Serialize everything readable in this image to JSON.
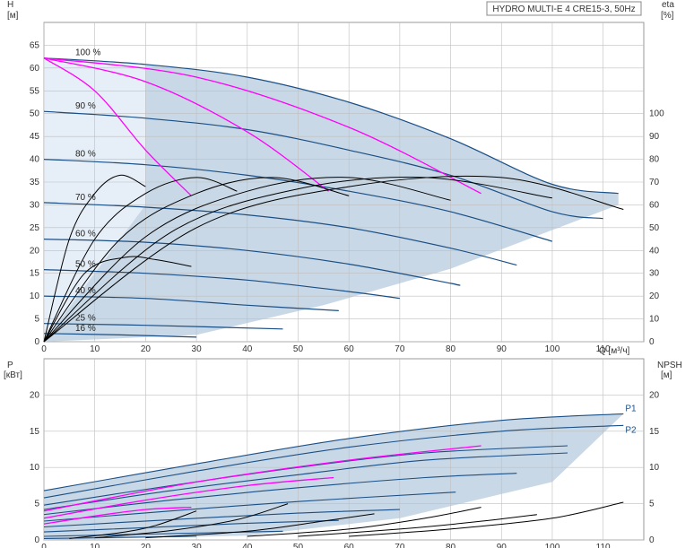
{
  "title": "HYDRO MULTI-E 4 CRE15-3, 50Hz",
  "colors": {
    "envelope": "#c9d8e6",
    "envelope_light": "#e6eef7",
    "curve": "#1a4f86",
    "magenta": "#ff00ff",
    "black": "#000000",
    "grid": "#bfbfbf"
  },
  "chart_data": [
    {
      "type": "line",
      "panel": "head",
      "title": "HYDRO MULTI-E 4 CRE15-3, 50Hz",
      "xlabel": "Q [м³/ч]",
      "ylabel_left": "H\n[м]",
      "ylabel_right": "eta\n[%]",
      "xlim": [
        0,
        118
      ],
      "ylim": [
        0,
        70
      ],
      "ylim_right": [
        0,
        140
      ],
      "x_ticks": [
        0,
        10,
        20,
        30,
        40,
        50,
        60,
        70,
        80,
        90,
        100,
        110
      ],
      "y_ticks": [
        0,
        5,
        10,
        15,
        20,
        25,
        30,
        35,
        40,
        45,
        50,
        55,
        60,
        65
      ],
      "y_ticks_right": [
        0,
        10,
        20,
        30,
        40,
        50,
        60,
        70,
        80,
        90,
        100
      ],
      "speed_curves": [
        {
          "name": "100 %",
          "x": [
            0,
            20,
            40,
            60,
            80,
            100,
            113
          ],
          "y": [
            62.2,
            60.8,
            58.0,
            52.5,
            44.5,
            34.5,
            32.5
          ]
        },
        {
          "name": "90 %",
          "x": [
            0,
            20,
            40,
            60,
            80,
            100,
            110
          ],
          "y": [
            50.5,
            49.0,
            46.5,
            42.0,
            36.5,
            28.5,
            27.0
          ]
        },
        {
          "name": "80 %",
          "x": [
            0,
            20,
            40,
            60,
            80,
            100
          ],
          "y": [
            40.0,
            38.8,
            36.5,
            33.0,
            28.5,
            22.0
          ]
        },
        {
          "name": "70 %",
          "x": [
            0,
            20,
            40,
            60,
            80,
            93
          ],
          "y": [
            30.5,
            29.5,
            27.8,
            25.0,
            20.5,
            16.8
          ]
        },
        {
          "name": "60 %",
          "x": [
            0,
            20,
            40,
            60,
            80,
            81
          ],
          "y": [
            22.5,
            21.8,
            20.0,
            17.0,
            12.8,
            12.5
          ]
        },
        {
          "name": "50 %",
          "x": [
            0,
            20,
            40,
            60,
            70
          ],
          "y": [
            15.8,
            15.0,
            13.5,
            11.0,
            9.5
          ]
        },
        {
          "name": "40 %",
          "x": [
            0,
            20,
            40,
            58
          ],
          "y": [
            10.0,
            9.5,
            8.0,
            6.8
          ]
        },
        {
          "name": "25 %",
          "x": [
            0,
            20,
            47
          ],
          "y": [
            4.0,
            3.6,
            2.8
          ]
        },
        {
          "name": "16 %",
          "x": [
            0,
            15,
            30
          ],
          "y": [
            1.8,
            1.5,
            1.0
          ]
        }
      ],
      "magenta_curves": [
        {
          "x": [
            0,
            10,
            20,
            29
          ],
          "y": [
            62.2,
            55.0,
            42.0,
            32.0
          ]
        },
        {
          "x": [
            0,
            20,
            40,
            56
          ],
          "y": [
            62.2,
            57.0,
            46.0,
            33.0
          ]
        },
        {
          "x": [
            0,
            30,
            60,
            86
          ],
          "y": [
            62.2,
            58.0,
            47.0,
            32.5
          ]
        }
      ],
      "eta_curves": [
        {
          "x": [
            0,
            5,
            10,
            15,
            20
          ],
          "y": [
            0,
            45,
            65,
            73,
            68
          ]
        },
        {
          "x": [
            0,
            10,
            20,
            30,
            38
          ],
          "y": [
            0,
            45,
            65,
            72,
            66
          ]
        },
        {
          "x": [
            0,
            15,
            30,
            45,
            60
          ],
          "y": [
            0,
            45,
            65,
            72,
            64
          ]
        },
        {
          "x": [
            0,
            20,
            40,
            60,
            80
          ],
          "y": [
            0,
            46,
            66,
            72,
            62
          ]
        },
        {
          "x": [
            0,
            25,
            50,
            75,
            100
          ],
          "y": [
            0,
            48,
            67,
            72,
            63
          ]
        },
        {
          "x": [
            0,
            30,
            60,
            90,
            114
          ],
          "y": [
            0,
            50,
            68,
            72,
            58
          ]
        },
        {
          "x": [
            0,
            8,
            16,
            22,
            29
          ],
          "y": [
            0,
            30,
            37,
            36,
            33
          ]
        }
      ],
      "speed_labels": [
        "100 %",
        "90 %",
        "80 %",
        "70 %",
        "60 %",
        "50 %",
        "40 %",
        "25 %",
        "16 %"
      ]
    },
    {
      "type": "line",
      "panel": "power",
      "xlabel": "",
      "ylabel_left": "P\n[кВт]",
      "ylabel_right": "NPSH\n[м]",
      "xlim": [
        0,
        118
      ],
      "ylim": [
        0,
        25
      ],
      "x_ticks": [
        0,
        10,
        20,
        30,
        40,
        50,
        60,
        70,
        80,
        90,
        100,
        110
      ],
      "y_ticks": [
        0,
        5,
        10,
        15,
        20
      ],
      "y_ticks_right": [
        0,
        5,
        10,
        15,
        20
      ],
      "series_labels": [
        "P1",
        "P2"
      ],
      "power_curves": [
        {
          "x": [
            0,
            30,
            60,
            90,
            114
          ],
          "y": [
            6.8,
            10.5,
            14.0,
            16.5,
            17.4
          ]
        },
        {
          "x": [
            0,
            30,
            60,
            90,
            114
          ],
          "y": [
            5.8,
            9.5,
            12.8,
            15.0,
            15.8
          ]
        },
        {
          "x": [
            0,
            25,
            50,
            75,
            103
          ],
          "y": [
            4.8,
            7.5,
            10.0,
            12.0,
            13.0
          ]
        },
        {
          "x": [
            0,
            25,
            50,
            75,
            103
          ],
          "y": [
            4.2,
            6.8,
            9.0,
            11.0,
            12.0
          ]
        },
        {
          "x": [
            0,
            25,
            50,
            75,
            93
          ],
          "y": [
            3.5,
            5.5,
            7.2,
            8.6,
            9.2
          ]
        },
        {
          "x": [
            0,
            25,
            50,
            81
          ],
          "y": [
            2.6,
            4.0,
            5.3,
            6.6
          ]
        },
        {
          "x": [
            0,
            25,
            50,
            70
          ],
          "y": [
            1.8,
            2.8,
            3.7,
            4.2
          ]
        },
        {
          "x": [
            0,
            20,
            40,
            58
          ],
          "y": [
            1.1,
            1.7,
            2.3,
            2.7
          ]
        },
        {
          "x": [
            0,
            20,
            47
          ],
          "y": [
            0.5,
            0.8,
            1.2
          ]
        },
        {
          "x": [
            0,
            15,
            30
          ],
          "y": [
            0.2,
            0.35,
            0.5
          ]
        }
      ],
      "magenta_curves": [
        {
          "x": [
            0,
            30,
            60,
            86
          ],
          "y": [
            4.0,
            8.0,
            11.0,
            13.0
          ]
        },
        {
          "x": [
            0,
            20,
            40,
            57
          ],
          "y": [
            3.0,
            5.5,
            7.5,
            8.6
          ]
        },
        {
          "x": [
            0,
            10,
            20,
            29
          ],
          "y": [
            2.2,
            3.3,
            4.2,
            4.5
          ]
        }
      ],
      "npsh_curves": [
        {
          "x": [
            60,
            80,
            100,
            114
          ],
          "y": [
            0.5,
            1.5,
            3.0,
            5.2
          ]
        },
        {
          "x": [
            50,
            70,
            85,
            97
          ],
          "y": [
            0.5,
            1.5,
            2.5,
            3.5
          ]
        },
        {
          "x": [
            40,
            60,
            75,
            86
          ],
          "y": [
            0.5,
            1.5,
            3.0,
            4.5
          ]
        },
        {
          "x": [
            20,
            40,
            55,
            65
          ],
          "y": [
            0.3,
            1.2,
            2.6,
            3.6
          ]
        },
        {
          "x": [
            10,
            25,
            38,
            48
          ],
          "y": [
            0.3,
            1.3,
            2.8,
            5.0
          ]
        },
        {
          "x": [
            5,
            15,
            22,
            30
          ],
          "y": [
            0.2,
            1.0,
            2.0,
            4.0
          ]
        }
      ]
    }
  ]
}
